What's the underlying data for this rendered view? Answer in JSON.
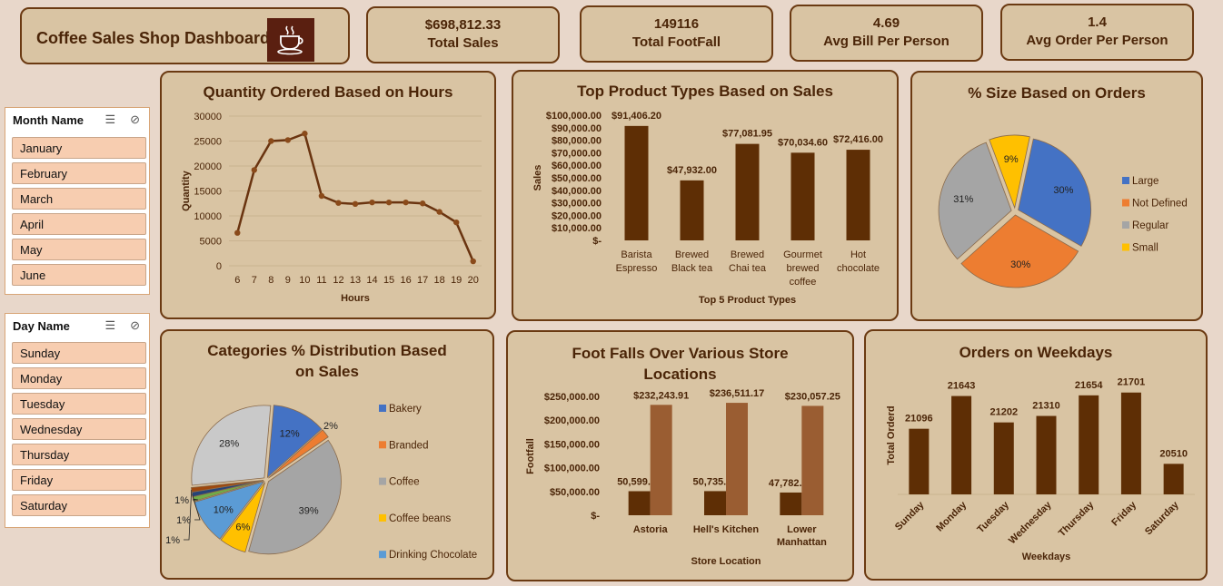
{
  "header": {
    "title": "Coffee Sales Shop Dashboard",
    "logo_icon": "coffee-cup-icon"
  },
  "kpis": [
    {
      "value": "$698,812.33",
      "label": "Total Sales"
    },
    {
      "value": "149116",
      "label": "Total FootFall"
    },
    {
      "value": "4.69",
      "label": "Avg Bill Per Person"
    },
    {
      "value": "1.4",
      "label": "Avg Order Per Person"
    }
  ],
  "slicers": {
    "month": {
      "title": "Month Name",
      "items": [
        "January",
        "February",
        "March",
        "April",
        "May",
        "June"
      ]
    },
    "day": {
      "title": "Day Name",
      "items": [
        "Sunday",
        "Monday",
        "Tuesday",
        "Wednesday",
        "Thursday",
        "Friday",
        "Saturday"
      ]
    }
  },
  "colors": {
    "dark_brown": "#5e2e05",
    "light_brown": "#9a5d32",
    "card_bg": "#d9c4a3"
  },
  "chart_data": [
    {
      "type": "line",
      "title": "Quantity Ordered Based on Hours",
      "xlabel": "Hours",
      "ylabel": "Quantity",
      "x": [
        6,
        7,
        8,
        9,
        10,
        11,
        12,
        13,
        14,
        15,
        16,
        17,
        18,
        19,
        20
      ],
      "values": [
        6600,
        19200,
        25000,
        25200,
        26500,
        14000,
        12600,
        12400,
        12700,
        12700,
        12700,
        12500,
        10800,
        8700,
        900
      ],
      "ylim": [
        0,
        30000
      ],
      "yticks": [
        "0",
        "5000",
        "10000",
        "15000",
        "20000",
        "25000",
        "30000"
      ],
      "grid": true
    },
    {
      "type": "bar",
      "title": "Top Product Types Based on Sales",
      "xlabel": "Top 5 Product Types",
      "ylabel": "Sales",
      "categories": [
        [
          "Barista",
          "Espresso"
        ],
        [
          "Brewed",
          "Black tea"
        ],
        [
          "Brewed",
          "Chai tea"
        ],
        [
          "Gourmet",
          "brewed",
          "coffee"
        ],
        [
          "Hot",
          "chocolate"
        ]
      ],
      "values": [
        91406.2,
        47932.0,
        77081.95,
        70034.6,
        72416.0
      ],
      "labels": [
        "$91,406.20",
        "$47,932.00",
        "$77,081.95",
        "$70,034.60",
        "$72,416.00"
      ],
      "ylim": [
        0,
        100000
      ],
      "yticks": [
        "$-",
        "$10,000.00",
        "$20,000.00",
        "$30,000.00",
        "$40,000.00",
        "$50,000.00",
        "$60,000.00",
        "$70,000.00",
        "$80,000.00",
        "$90,000.00",
        "$100,000.00"
      ]
    },
    {
      "type": "pie",
      "title": "% Size Based on Orders",
      "slices": [
        {
          "name": "Large",
          "value": 30,
          "label": "30%",
          "color": "#4472c4"
        },
        {
          "name": "Not Defined",
          "value": 30,
          "label": "30%",
          "color": "#ed7d31"
        },
        {
          "name": "Regular",
          "value": 31,
          "label": "31%",
          "color": "#a5a5a5"
        },
        {
          "name": "Small",
          "value": 9,
          "label": "9%",
          "color": "#ffc000"
        }
      ],
      "legend": "right"
    },
    {
      "type": "pie",
      "title": "Categories % Distribution Based on Sales",
      "slices": [
        {
          "name": "Bakery",
          "value": 12,
          "label": "12%",
          "color": "#4472c4"
        },
        {
          "name": "Branded",
          "value": 2,
          "label": "2%",
          "color": "#ed7d31"
        },
        {
          "name": "Coffee",
          "value": 39,
          "label": "39%",
          "color": "#a5a5a5"
        },
        {
          "name": "Coffee beans",
          "value": 6,
          "label": "6%",
          "color": "#ffc000"
        },
        {
          "name": "Drinking Chocolate",
          "value": 10,
          "label": "10%",
          "color": "#5b9bd5"
        },
        {
          "name": "",
          "value": 1,
          "label": "1%",
          "color": "#70ad47"
        },
        {
          "name": "",
          "value": 1,
          "label": "1%",
          "color": "#264478"
        },
        {
          "name": "",
          "value": 1,
          "label": "1%",
          "color": "#9e480e"
        },
        {
          "name": "",
          "value": 28,
          "label": "28%",
          "color": "#c9c9c9"
        }
      ],
      "legend": "right"
    },
    {
      "type": "bar",
      "title": "Foot Falls Over Various Store Locations",
      "xlabel": "Store Location",
      "ylabel": "Footfall",
      "categories": [
        [
          "Astoria"
        ],
        [
          "Hell's Kitchen"
        ],
        [
          "Lower",
          "Manhattan"
        ]
      ],
      "series": [
        {
          "values": [
            50599.0,
            50735.0,
            47782.0
          ],
          "labels": [
            "50,599.00",
            "50,735.00",
            "47,782.00"
          ]
        },
        {
          "values": [
            232243.91,
            236511.17,
            230057.25
          ],
          "labels": [
            "$232,243.91",
            "$236,511.17",
            "$230,057.25"
          ]
        }
      ],
      "ylim": [
        0,
        250000
      ],
      "yticks": [
        "$-",
        "$50,000.00",
        "$100,000.00",
        "$150,000.00",
        "$200,000.00",
        "$250,000.00"
      ]
    },
    {
      "type": "bar",
      "title": "Orders on Weekdays",
      "xlabel": "Weekdays",
      "ylabel": "Total Orderd",
      "categories": [
        "Sunday",
        "Monday",
        "Tuesday",
        "Wednesday",
        "Thursday",
        "Friday",
        "Saturday"
      ],
      "values": [
        21096,
        21643,
        21202,
        21310,
        21654,
        21701,
        20510
      ],
      "labels": [
        "21096",
        "21643",
        "21202",
        "21310",
        "21654",
        "21701",
        "20510"
      ],
      "ylim": [
        20000,
        22000
      ]
    }
  ]
}
